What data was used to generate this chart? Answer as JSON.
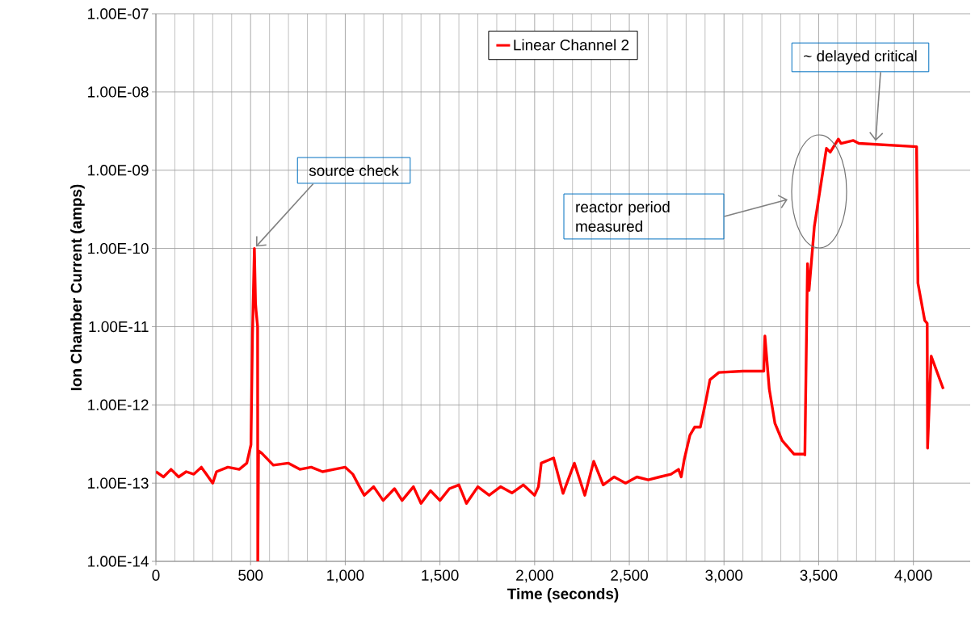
{
  "chart_data": {
    "type": "line",
    "xlabel": "Time (seconds)",
    "ylabel": "Ion Chamber Current (amps)",
    "log": "y",
    "grid": true,
    "legend": "top",
    "xlim": [
      0,
      4300
    ],
    "ylim": [
      1e-14,
      1e-07
    ],
    "xticks": [
      0,
      500,
      {
        "value": 1000,
        "label": "1,000"
      },
      {
        "value": 1500,
        "label": "1,500"
      },
      {
        "value": 2000,
        "label": "2,000"
      },
      {
        "value": 2500,
        "label": "2,500"
      },
      {
        "value": 3000,
        "label": "3,000"
      },
      {
        "value": 3500,
        "label": "3,500"
      },
      {
        "value": 4000,
        "label": "4,000"
      }
    ],
    "yticks": [
      {
        "value": 1e-14,
        "label": "1.00E-14"
      },
      {
        "value": 1e-13,
        "label": "1.00E-13"
      },
      {
        "value": 1e-12,
        "label": "1.00E-12"
      },
      {
        "value": 1e-11,
        "label": "1.00E-11"
      },
      {
        "value": 1e-10,
        "label": "1.00E-10"
      },
      {
        "value": 1e-09,
        "label": "1.00E-09"
      },
      {
        "value": 1e-08,
        "label": "1.00E-08"
      },
      {
        "value": 1e-07,
        "label": "1.00E-07"
      }
    ],
    "annotations": [
      {
        "text": "source check",
        "x": 520,
        "y": 1e-10
      },
      "reactor period measured",
      {
        "text": "~ delayed critical",
        "x": 3800,
        "y": 2.2e-09
      }
    ],
    "series": [
      {
        "name": "Linear Channel 2",
        "color": "#ff0000",
        "x": [
          0,
          40,
          80,
          120,
          160,
          200,
          240,
          300,
          320,
          380,
          440,
          480,
          502,
          510,
          520,
          526,
          529,
          537,
          538,
          542,
          560,
          620,
          700,
          760,
          820,
          880,
          940,
          1000,
          1040,
          1075,
          1100,
          1150,
          1200,
          1260,
          1300,
          1360,
          1400,
          1450,
          1500,
          1550,
          1600,
          1640,
          1700,
          1760,
          1820,
          1880,
          1940,
          2000,
          2020,
          2035,
          2100,
          2150,
          2210,
          2265,
          2312,
          2362,
          2420,
          2480,
          2540,
          2600,
          2660,
          2720,
          2760,
          2774,
          2790,
          2820,
          2845,
          2875,
          2905,
          2926,
          2973,
          3100,
          3210,
          3216,
          3239,
          3269,
          3307,
          3369,
          3420,
          3427,
          3441,
          3449,
          3477,
          3541,
          3561,
          3604,
          3618,
          3683,
          3712,
          4017,
          4024,
          4060,
          4073,
          4075,
          4094,
          4158
        ],
        "values": [
          1.4e-13,
          1.2e-13,
          1.5e-13,
          1.2e-13,
          1.4e-13,
          1.3e-13,
          1.6e-13,
          1e-13,
          1.4e-13,
          1.6e-13,
          1.5e-13,
          1.8e-13,
          3.1e-13,
          8e-12,
          1e-10,
          2e-11,
          1.6e-11,
          1e-11,
          1e-14,
          2.6e-13,
          2.4e-13,
          1.7e-13,
          1.8e-13,
          1.5e-13,
          1.6e-13,
          1.4e-13,
          1.5e-13,
          1.6e-13,
          1.3e-13,
          9e-14,
          7e-14,
          9e-14,
          6e-14,
          8.5e-14,
          6e-14,
          9e-14,
          5.5e-14,
          8e-14,
          6e-14,
          8.5e-14,
          9.5e-14,
          5.5e-14,
          9e-14,
          7e-14,
          9e-14,
          7.5e-14,
          9.5e-14,
          7e-14,
          9e-14,
          1.8e-13,
          2.1e-13,
          7.4e-14,
          1.8e-13,
          7e-14,
          1.9e-13,
          9.5e-14,
          1.2e-13,
          1e-13,
          1.2e-13,
          1.1e-13,
          1.2e-13,
          1.3e-13,
          1.5e-13,
          1.2e-13,
          2e-13,
          4.1e-13,
          5.2e-13,
          5.2e-13,
          1.15e-12,
          2.1e-12,
          2.6e-12,
          2.7e-12,
          2.7e-12,
          7.6e-12,
          1.6e-12,
          5.8e-13,
          3.5e-13,
          2.35e-13,
          2.35e-13,
          2.3e-13,
          6.4e-11,
          2.9e-11,
          1.9e-10,
          1.9e-09,
          1.7e-09,
          2.5e-09,
          2.2e-09,
          2.4e-09,
          2.2e-09,
          2e-09,
          3.6e-11,
          1.2e-11,
          1.1e-11,
          2.8e-13,
          4.2e-12,
          1.6e-12
        ]
      }
    ]
  }
}
